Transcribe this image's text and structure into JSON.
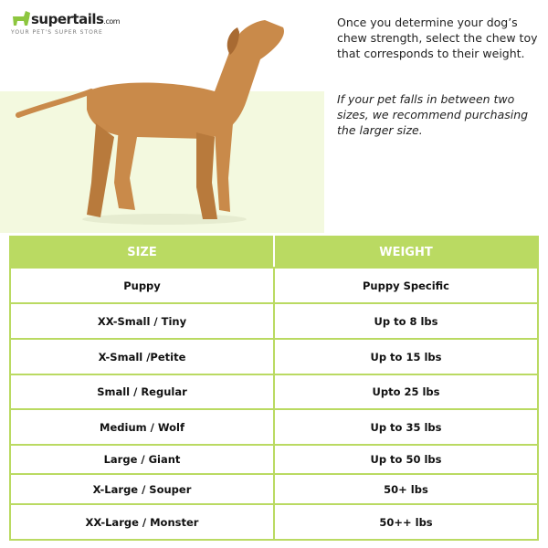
{
  "brand": {
    "name": "supertails",
    "suffix": ".com",
    "tagline": "YOUR PET'S SUPER STORE",
    "color": "#8dc63f"
  },
  "copy": {
    "instruction": "Once you determine your dog’s chew strength, select the chew toy that corresponds to their weight.",
    "note": "If your pet falls in between two sizes, we recommend purchasing the larger size."
  },
  "table": {
    "headers": [
      "SIZE",
      "WEIGHT"
    ],
    "header_color": "#bada62",
    "rows": [
      {
        "size": "Puppy",
        "weight": "Puppy Specific"
      },
      {
        "size": "XX-Small / Tiny",
        "weight": "Up to 8 lbs"
      },
      {
        "size": "X-Small /Petite",
        "weight": "Up to 15 lbs"
      },
      {
        "size": "Small / Regular",
        "weight": "Upto 25 lbs"
      },
      {
        "size": "Medium / Wolf",
        "weight": "Up to 35 lbs"
      },
      {
        "size": "Large / Giant",
        "weight": "Up to 50 lbs"
      },
      {
        "size": "X-Large / Souper",
        "weight": "50+ lbs"
      },
      {
        "size": "XX-Large / Monster",
        "weight": "50++ lbs"
      }
    ]
  }
}
